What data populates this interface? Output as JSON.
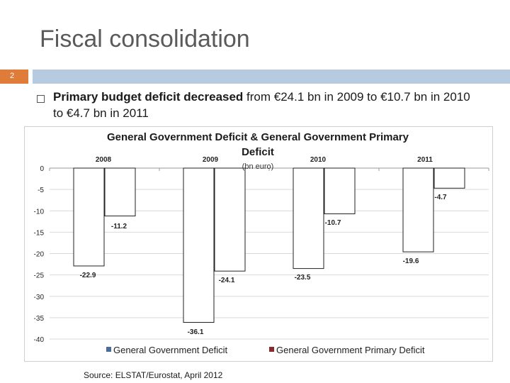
{
  "slide": {
    "title": "Fiscal consolidation",
    "number": "2",
    "bullet": {
      "bold": "Primary budget deficit decreased",
      "rest": " from €24.1 bn in 2009 to €10.7 bn in 2010 to €4.7 bn in 2011"
    },
    "source": "Source: ELSTAT/Eurostat, April 2012"
  },
  "colors": {
    "accent_orange": "#e07c3a",
    "accent_blue": "#b6cbe0",
    "series1_legend": "#4a6d9b",
    "series2_legend": "#8b2a2a",
    "bar_fill": "#ffffff",
    "bar_stroke": "#222222"
  },
  "chart_data": {
    "type": "bar",
    "title_line1": "General Government Deficit & General Government Primary",
    "title_line2": "Deficit",
    "subtitle": "(bn euro)",
    "categories": [
      "2008",
      "2009",
      "2010",
      "2011"
    ],
    "series": [
      {
        "name": "General Government Deficit",
        "values": [
          -22.9,
          -36.1,
          -23.5,
          -19.6
        ]
      },
      {
        "name": "General Government Primary Deficit",
        "values": [
          -11.2,
          -24.1,
          -10.7,
          -4.7
        ]
      }
    ],
    "data_labels": [
      [
        "-22.9",
        "-11.2"
      ],
      [
        "-36.1",
        "-24.1"
      ],
      [
        "-23.5",
        "-10.7"
      ],
      [
        "-19.6",
        "-4.7"
      ]
    ],
    "y_ticks": [
      "0",
      "-5",
      "-10",
      "-15",
      "-20",
      "-25",
      "-30",
      "-35",
      "-40"
    ],
    "ylim": [
      -40,
      0
    ],
    "grid": true,
    "legend_position": "bottom"
  }
}
